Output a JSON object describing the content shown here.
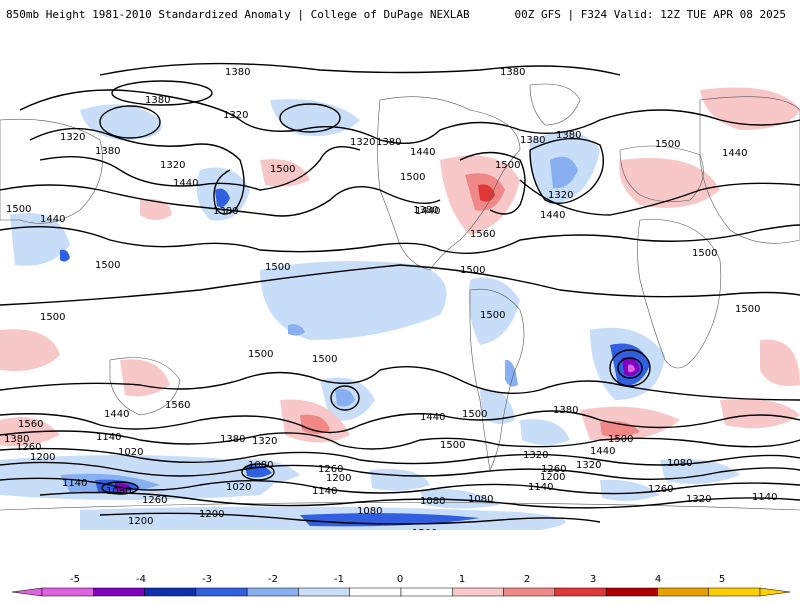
{
  "header": {
    "title_left": "850mb Height 1981-2010 Standardized Anomaly | College of DuPage NEXLAB",
    "title_right": "00Z GFS | F324 Valid: 12Z TUE APR 08 2025"
  },
  "map": {
    "projection": "cylindrical-equidistant",
    "coverage": "global",
    "variable": "850mb geopotential height (dam) with standardized anomaly shading",
    "contour_labels": [
      {
        "id": "c1",
        "text": "1380"
      },
      {
        "id": "c2",
        "text": "1380"
      },
      {
        "id": "c3",
        "text": "1380"
      },
      {
        "id": "c4",
        "text": "1320"
      },
      {
        "id": "c5",
        "text": "1380"
      },
      {
        "id": "c6",
        "text": "1320"
      },
      {
        "id": "c7",
        "text": "1320"
      },
      {
        "id": "c8",
        "text": "1320"
      },
      {
        "id": "c9",
        "text": "1380"
      },
      {
        "id": "c10",
        "text": "1440"
      },
      {
        "id": "c11",
        "text": "1380"
      },
      {
        "id": "c12",
        "text": "1380"
      },
      {
        "id": "c13",
        "text": "1500"
      },
      {
        "id": "c14",
        "text": "1500"
      },
      {
        "id": "c15",
        "text": "1440"
      },
      {
        "id": "c16",
        "text": "1500"
      },
      {
        "id": "c17",
        "text": "1380"
      },
      {
        "id": "c18",
        "text": "1500"
      },
      {
        "id": "c19",
        "text": "1440"
      },
      {
        "id": "c20",
        "text": "1440"
      },
      {
        "id": "c21",
        "text": "1380"
      },
      {
        "id": "c22",
        "text": "1320"
      },
      {
        "id": "c23",
        "text": "1560"
      },
      {
        "id": "c24",
        "text": "1440"
      },
      {
        "id": "c25",
        "text": "1500"
      },
      {
        "id": "c26",
        "text": "1440"
      },
      {
        "id": "c27",
        "text": "1500"
      },
      {
        "id": "c28",
        "text": "1500"
      },
      {
        "id": "c29",
        "text": "1500"
      },
      {
        "id": "c30",
        "text": "1500"
      },
      {
        "id": "c31",
        "text": "1500"
      },
      {
        "id": "c32",
        "text": "1500"
      },
      {
        "id": "c33",
        "text": "1500"
      },
      {
        "id": "c34",
        "text": "1500"
      },
      {
        "id": "c35",
        "text": "1500"
      },
      {
        "id": "c36",
        "text": "1560"
      },
      {
        "id": "c37",
        "text": "1440"
      },
      {
        "id": "c38",
        "text": "1560"
      },
      {
        "id": "c39",
        "text": "1380"
      },
      {
        "id": "c40",
        "text": "1260"
      },
      {
        "id": "c41",
        "text": "1200"
      },
      {
        "id": "c42",
        "text": "1140"
      },
      {
        "id": "c43",
        "text": "1020"
      },
      {
        "id": "c44",
        "text": "1140"
      },
      {
        "id": "c45",
        "text": "1080"
      },
      {
        "id": "c46",
        "text": "1260"
      },
      {
        "id": "c47",
        "text": "1200"
      },
      {
        "id": "c48",
        "text": "1380"
      },
      {
        "id": "c49",
        "text": "1320"
      },
      {
        "id": "c50",
        "text": "1080"
      },
      {
        "id": "c51",
        "text": "1020"
      },
      {
        "id": "c52",
        "text": "1260"
      },
      {
        "id": "c53",
        "text": "1200"
      },
      {
        "id": "c54",
        "text": "1140"
      },
      {
        "id": "c55",
        "text": "1080"
      },
      {
        "id": "c56",
        "text": "1080"
      },
      {
        "id": "c57",
        "text": "1440"
      },
      {
        "id": "c58",
        "text": "1500"
      },
      {
        "id": "c59",
        "text": "1380"
      },
      {
        "id": "c60",
        "text": "1320"
      },
      {
        "id": "c61",
        "text": "1260"
      },
      {
        "id": "c62",
        "text": "1200"
      },
      {
        "id": "c63",
        "text": "1140"
      },
      {
        "id": "c64",
        "text": "1500"
      },
      {
        "id": "c65",
        "text": "1440"
      },
      {
        "id": "c66",
        "text": "1320"
      },
      {
        "id": "c67",
        "text": "1080"
      },
      {
        "id": "c68",
        "text": "1080"
      },
      {
        "id": "c69",
        "text": "1260"
      },
      {
        "id": "c70",
        "text": "1320"
      },
      {
        "id": "c71",
        "text": "1140"
      },
      {
        "id": "c72",
        "text": "1200"
      },
      {
        "id": "c73",
        "text": "1500"
      },
      {
        "id": "c74",
        "text": "1500"
      }
    ]
  },
  "colorbar": {
    "ticks": [
      "-5",
      "-4",
      "-3",
      "-2",
      "-1",
      "0",
      "1",
      "2",
      "3",
      "4",
      "5"
    ],
    "colors": [
      "#e060e0",
      "#8000c0",
      "#1030b0",
      "#3060e0",
      "#88b0f0",
      "#c8def8",
      "#ffffff",
      "#ffffff",
      "#f8c8c8",
      "#f08888",
      "#e03838",
      "#b00000",
      "#e8a000",
      "#ffd000"
    ]
  }
}
